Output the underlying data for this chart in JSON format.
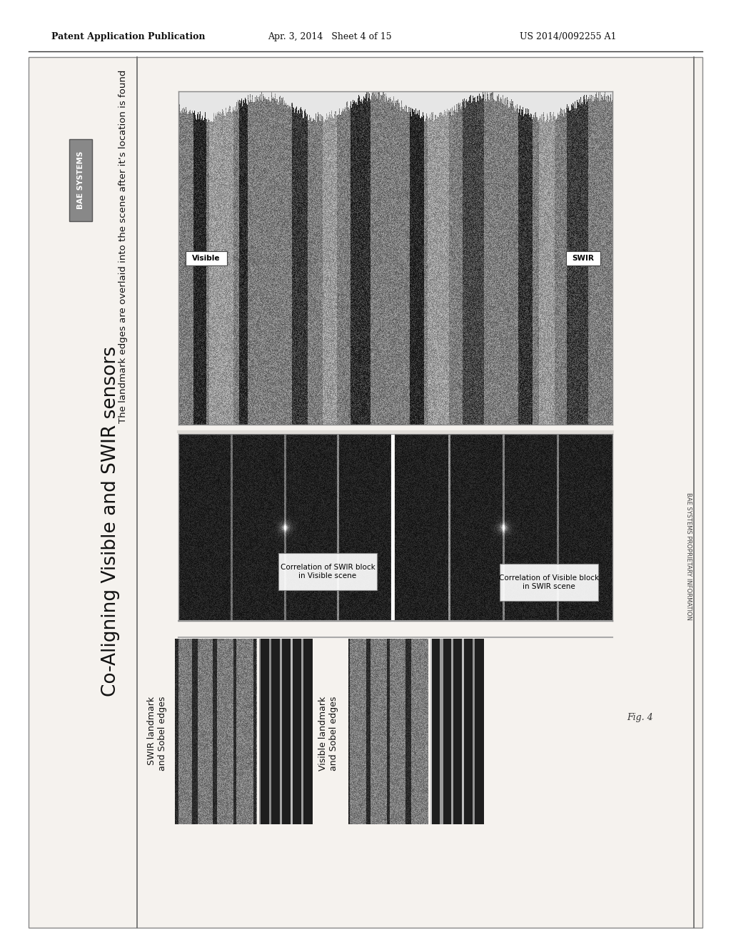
{
  "bg_color": "#ffffff",
  "header_left": "Patent Application Publication",
  "header_mid": "Apr. 3, 2014   Sheet 4 of 15",
  "header_right": "US 2014/0092255 A1",
  "main_title": "Co-Aligning Visible and SWIR sensors",
  "subtitle": "The landmark edges are overlaid into the scene after it’s location is found",
  "bae_label": "BAE SYSTEMS",
  "visible_label": "Visible",
  "swir_label": "SWIR",
  "corr_swir_label": "Correlation of SWIR block\nin Visible scene",
  "corr_vis_label": "Correlation of Visible block\nin SWIR scene",
  "swir_landmark_label": "SWIR landmark\nand Sobel edges",
  "vis_landmark_label": "Visible landmark\nand Sobel edges",
  "fig_label": "Fig. 4",
  "bae_watermark": "BAE SYSTEMS PROPRIETARY INFORMATION",
  "page_bg": "#f0ede8"
}
